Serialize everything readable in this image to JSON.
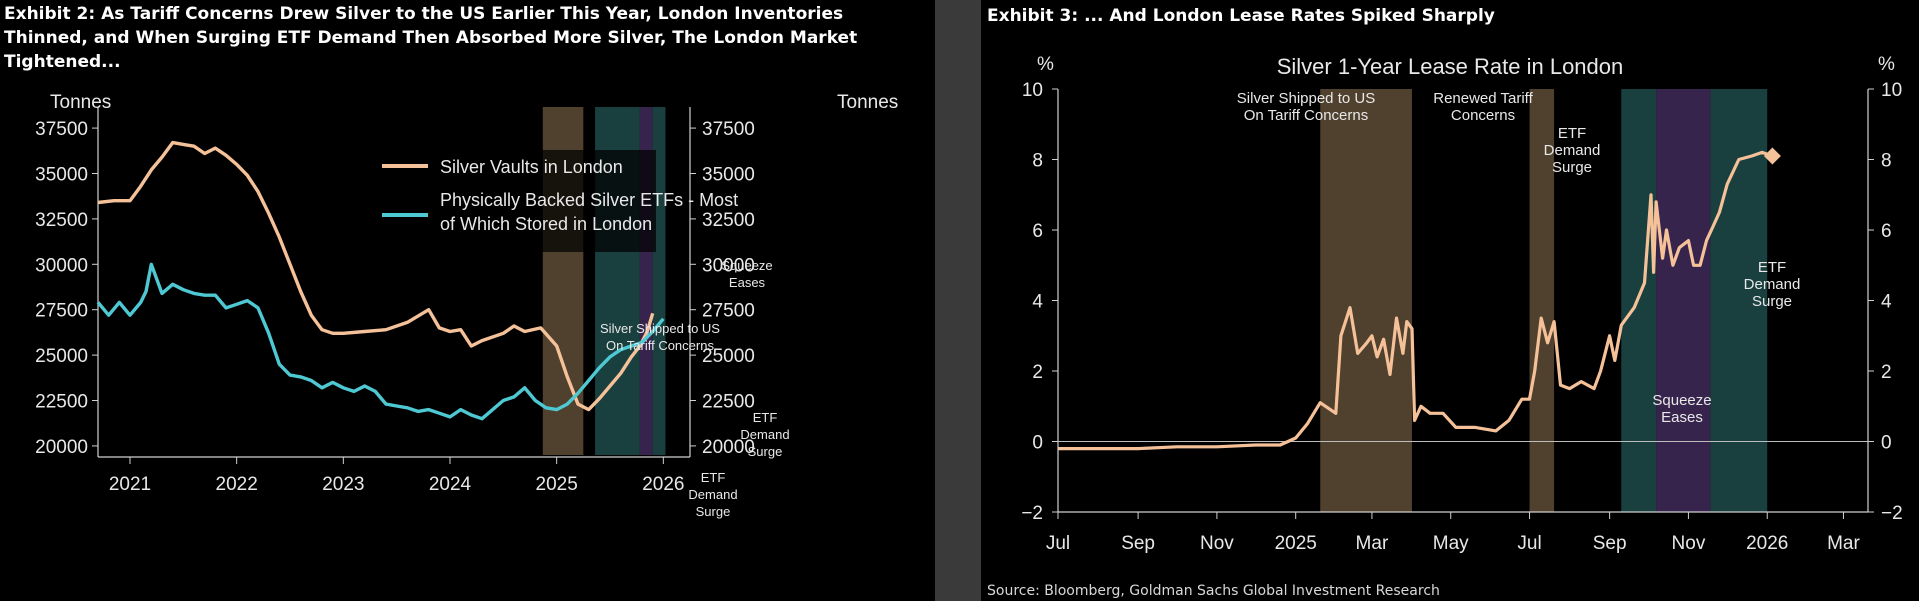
{
  "left": {
    "exhibit_title": [
      "Exhibit 2: As Tariff Concerns Drew Silver to the US Earlier This Year, London Inventories",
      "Thinned, and When Surging ETF Demand Then Absorbed More Silver, The London Market",
      "Tightened..."
    ]
  },
  "right": {
    "exhibit_title": "Exhibit 3: ... And London Lease Rates Spiked Sharply",
    "source": "Source: Bloomberg, Goldman Sachs Global Investment Research"
  },
  "colors": {
    "vaults": "#f5c199",
    "etf": "#4ec9d3",
    "shade_tariff": "#5e4b36",
    "shade_etf": "#1d4a4a",
    "shade_squeeze": "#3f2a5a",
    "lease": "#f5c199"
  },
  "chart_data": [
    {
      "type": "line",
      "ylabel_left": "Tonnes",
      "ylabel_right": "Tonnes",
      "xlim": [
        2020.7,
        2026.25
      ],
      "ylim": [
        19500,
        38000
      ],
      "yticks": [
        20000,
        22500,
        25000,
        27500,
        30000,
        32500,
        35000,
        37500
      ],
      "ytick_labels": [
        "20000",
        "22500",
        "25000",
        "27500",
        "30000",
        "32500",
        "35000",
        "37500"
      ],
      "xticks": [
        2021,
        2022,
        2023,
        2024,
        2025,
        2026
      ],
      "xtick_labels": [
        "2021",
        "2022",
        "2023",
        "2024",
        "2025",
        "2026"
      ],
      "legend_position": "top-right",
      "series": [
        {
          "name": "Silver Vaults in London",
          "color": "#f5c199",
          "x": [
            2020.7,
            2020.85,
            2021.0,
            2021.1,
            2021.2,
            2021.3,
            2021.4,
            2021.5,
            2021.6,
            2021.7,
            2021.8,
            2021.9,
            2022.0,
            2022.1,
            2022.2,
            2022.3,
            2022.4,
            2022.5,
            2022.6,
            2022.7,
            2022.8,
            2022.9,
            2023.0,
            2023.2,
            2023.4,
            2023.6,
            2023.8,
            2023.9,
            2024.0,
            2024.1,
            2024.2,
            2024.3,
            2024.5,
            2024.6,
            2024.7,
            2024.85,
            2025.0,
            2025.1,
            2025.2,
            2025.3,
            2025.4,
            2025.5,
            2025.6,
            2025.7,
            2025.78,
            2025.85,
            2025.9
          ],
          "values": [
            33400,
            33500,
            33500,
            34300,
            35200,
            35900,
            36700,
            36600,
            36500,
            36100,
            36400,
            36000,
            35500,
            34900,
            34000,
            32800,
            31500,
            30000,
            28500,
            27200,
            26400,
            26200,
            26200,
            26300,
            26400,
            26800,
            27500,
            26500,
            26300,
            26400,
            25500,
            25800,
            26200,
            26600,
            26300,
            26500,
            25500,
            23800,
            22300,
            22000,
            22600,
            23300,
            24000,
            24900,
            25500,
            26300,
            27300
          ]
        },
        {
          "name": "Physically Backed Silver ETFs - Most of Which Stored in London",
          "color": "#4ec9d3",
          "x": [
            2020.7,
            2020.8,
            2020.9,
            2021.0,
            2021.1,
            2021.15,
            2021.2,
            2021.3,
            2021.4,
            2021.5,
            2021.6,
            2021.7,
            2021.8,
            2021.9,
            2022.0,
            2022.1,
            2022.2,
            2022.3,
            2022.4,
            2022.5,
            2022.6,
            2022.7,
            2022.8,
            2022.9,
            2023.0,
            2023.1,
            2023.2,
            2023.3,
            2023.4,
            2023.5,
            2023.6,
            2023.7,
            2023.8,
            2023.9,
            2024.0,
            2024.1,
            2024.2,
            2024.3,
            2024.4,
            2024.5,
            2024.6,
            2024.7,
            2024.8,
            2024.9,
            2025.0,
            2025.1,
            2025.2,
            2025.3,
            2025.4,
            2025.5,
            2025.6,
            2025.7,
            2025.8,
            2025.9,
            2026.0
          ],
          "values": [
            27900,
            27200,
            27900,
            27200,
            27900,
            28500,
            30000,
            28400,
            28900,
            28600,
            28400,
            28300,
            28300,
            27600,
            27800,
            28000,
            27600,
            26200,
            24500,
            23900,
            23800,
            23600,
            23200,
            23500,
            23200,
            23000,
            23300,
            23000,
            22300,
            22200,
            22100,
            21900,
            22000,
            21800,
            21600,
            22000,
            21700,
            21500,
            22000,
            22500,
            22700,
            23200,
            22500,
            22100,
            22000,
            22300,
            22900,
            23600,
            24300,
            24900,
            25300,
            25500,
            25700,
            26300,
            27000
          ]
        }
      ],
      "shaded_regions": [
        {
          "x": [
            2024.87,
            2025.25
          ],
          "label": "Silver Shipped to US On Tariff Concerns"
        },
        {
          "x": [
            2025.36,
            2025.78
          ],
          "label": "ETF Demand Surge"
        },
        {
          "x": [
            2025.78,
            2025.9
          ],
          "label": "Squeeze Eases"
        },
        {
          "x": [
            2025.9,
            2026.02
          ],
          "label": "ETF Demand Surge"
        }
      ],
      "annotations": [
        "Squeeze Eases",
        "Silver Shipped to US On Tariff Concerns",
        "ETF Demand Surge",
        "ETF Demand Surge"
      ]
    },
    {
      "type": "line",
      "title": "Silver 1-Year Lease Rate in London",
      "ylabel_left": "%",
      "ylabel_right": "%",
      "xlim": [
        "2024-07-01",
        "2026-03-20"
      ],
      "ylim": [
        -2,
        10
      ],
      "yticks": [
        -2,
        0,
        2,
        4,
        6,
        8,
        10
      ],
      "ytick_labels": [
        "−2",
        "0",
        "2",
        "4",
        "6",
        "8",
        "10"
      ],
      "xticks": [
        "2024-07-01",
        "2024-09-01",
        "2024-11-01",
        "2025-01-01",
        "2025-03-01",
        "2025-05-01",
        "2025-07-01",
        "2025-09-01",
        "2025-11-01",
        "2026-01-01",
        "2026-03-01"
      ],
      "xtick_labels": [
        "Jul",
        "Sep",
        "Nov",
        "2025",
        "Mar",
        "May",
        "Jul",
        "Sep",
        "Nov",
        "2026",
        "Mar"
      ],
      "grid": "horizontal zero line",
      "series": [
        {
          "name": "",
          "color": "#f5c199",
          "x": [
            "2024-07-01",
            "2024-08-01",
            "2024-09-01",
            "2024-10-01",
            "2024-11-01",
            "2024-12-01",
            "2024-12-20",
            "2025-01-01",
            "2025-01-10",
            "2025-01-20",
            "2025-02-01",
            "2025-02-05",
            "2025-02-12",
            "2025-02-18",
            "2025-02-25",
            "2025-03-01",
            "2025-03-05",
            "2025-03-10",
            "2025-03-15",
            "2025-03-20",
            "2025-03-25",
            "2025-03-28",
            "2025-04-01",
            "2025-04-03",
            "2025-04-08",
            "2025-04-15",
            "2025-04-25",
            "2025-05-05",
            "2025-05-20",
            "2025-06-05",
            "2025-06-15",
            "2025-06-25",
            "2025-07-01",
            "2025-07-05",
            "2025-07-10",
            "2025-07-15",
            "2025-07-20",
            "2025-07-25",
            "2025-08-01",
            "2025-08-10",
            "2025-08-20",
            "2025-08-25",
            "2025-09-01",
            "2025-09-05",
            "2025-09-10",
            "2025-09-20",
            "2025-09-28",
            "2025-10-03",
            "2025-10-05",
            "2025-10-07",
            "2025-10-12",
            "2025-10-15",
            "2025-10-20",
            "2025-10-25",
            "2025-11-01",
            "2025-11-05",
            "2025-11-10",
            "2025-11-15",
            "2025-11-20",
            "2025-11-25",
            "2025-12-01",
            "2025-12-10",
            "2025-12-20",
            "2025-12-28",
            "2026-01-05"
          ],
          "values": [
            -0.2,
            -0.2,
            -0.2,
            -0.15,
            -0.15,
            -0.1,
            -0.1,
            0.1,
            0.5,
            1.1,
            0.8,
            3.0,
            3.8,
            2.5,
            2.8,
            3.0,
            2.4,
            2.9,
            1.9,
            3.5,
            2.5,
            3.4,
            3.2,
            0.6,
            1.0,
            0.8,
            0.8,
            0.4,
            0.4,
            0.3,
            0.6,
            1.2,
            1.2,
            2.0,
            3.5,
            2.8,
            3.4,
            1.6,
            1.5,
            1.7,
            1.5,
            2.0,
            3.0,
            2.3,
            3.3,
            3.8,
            4.5,
            7.0,
            4.8,
            6.8,
            5.2,
            6.0,
            5.0,
            5.5,
            5.7,
            5.0,
            5.0,
            5.7,
            6.1,
            6.5,
            7.3,
            8.0,
            8.1,
            8.2,
            8.1
          ]
        }
      ],
      "shaded_regions": [
        {
          "x": [
            "2025-01-20",
            "2025-04-01"
          ],
          "label": "Silver Shipped to US On Tariff Concerns"
        },
        {
          "x": [
            "2025-07-01",
            "2025-07-20"
          ],
          "label": "Renewed Tariff Concerns"
        },
        {
          "x": [
            "2025-09-10",
            "2025-10-07"
          ],
          "label": "ETF Demand Surge"
        },
        {
          "x": [
            "2025-10-07",
            "2025-11-18"
          ],
          "label": "Squeeze Eases"
        },
        {
          "x": [
            "2025-11-18",
            "2026-01-01"
          ],
          "label": "ETF Demand Surge"
        }
      ],
      "annotations": [
        "Silver Shipped to US On Tariff Concerns",
        "Renewed Tariff Concerns",
        "ETF Demand Surge",
        "ETF Demand Surge",
        "Squeeze Eases"
      ]
    }
  ]
}
